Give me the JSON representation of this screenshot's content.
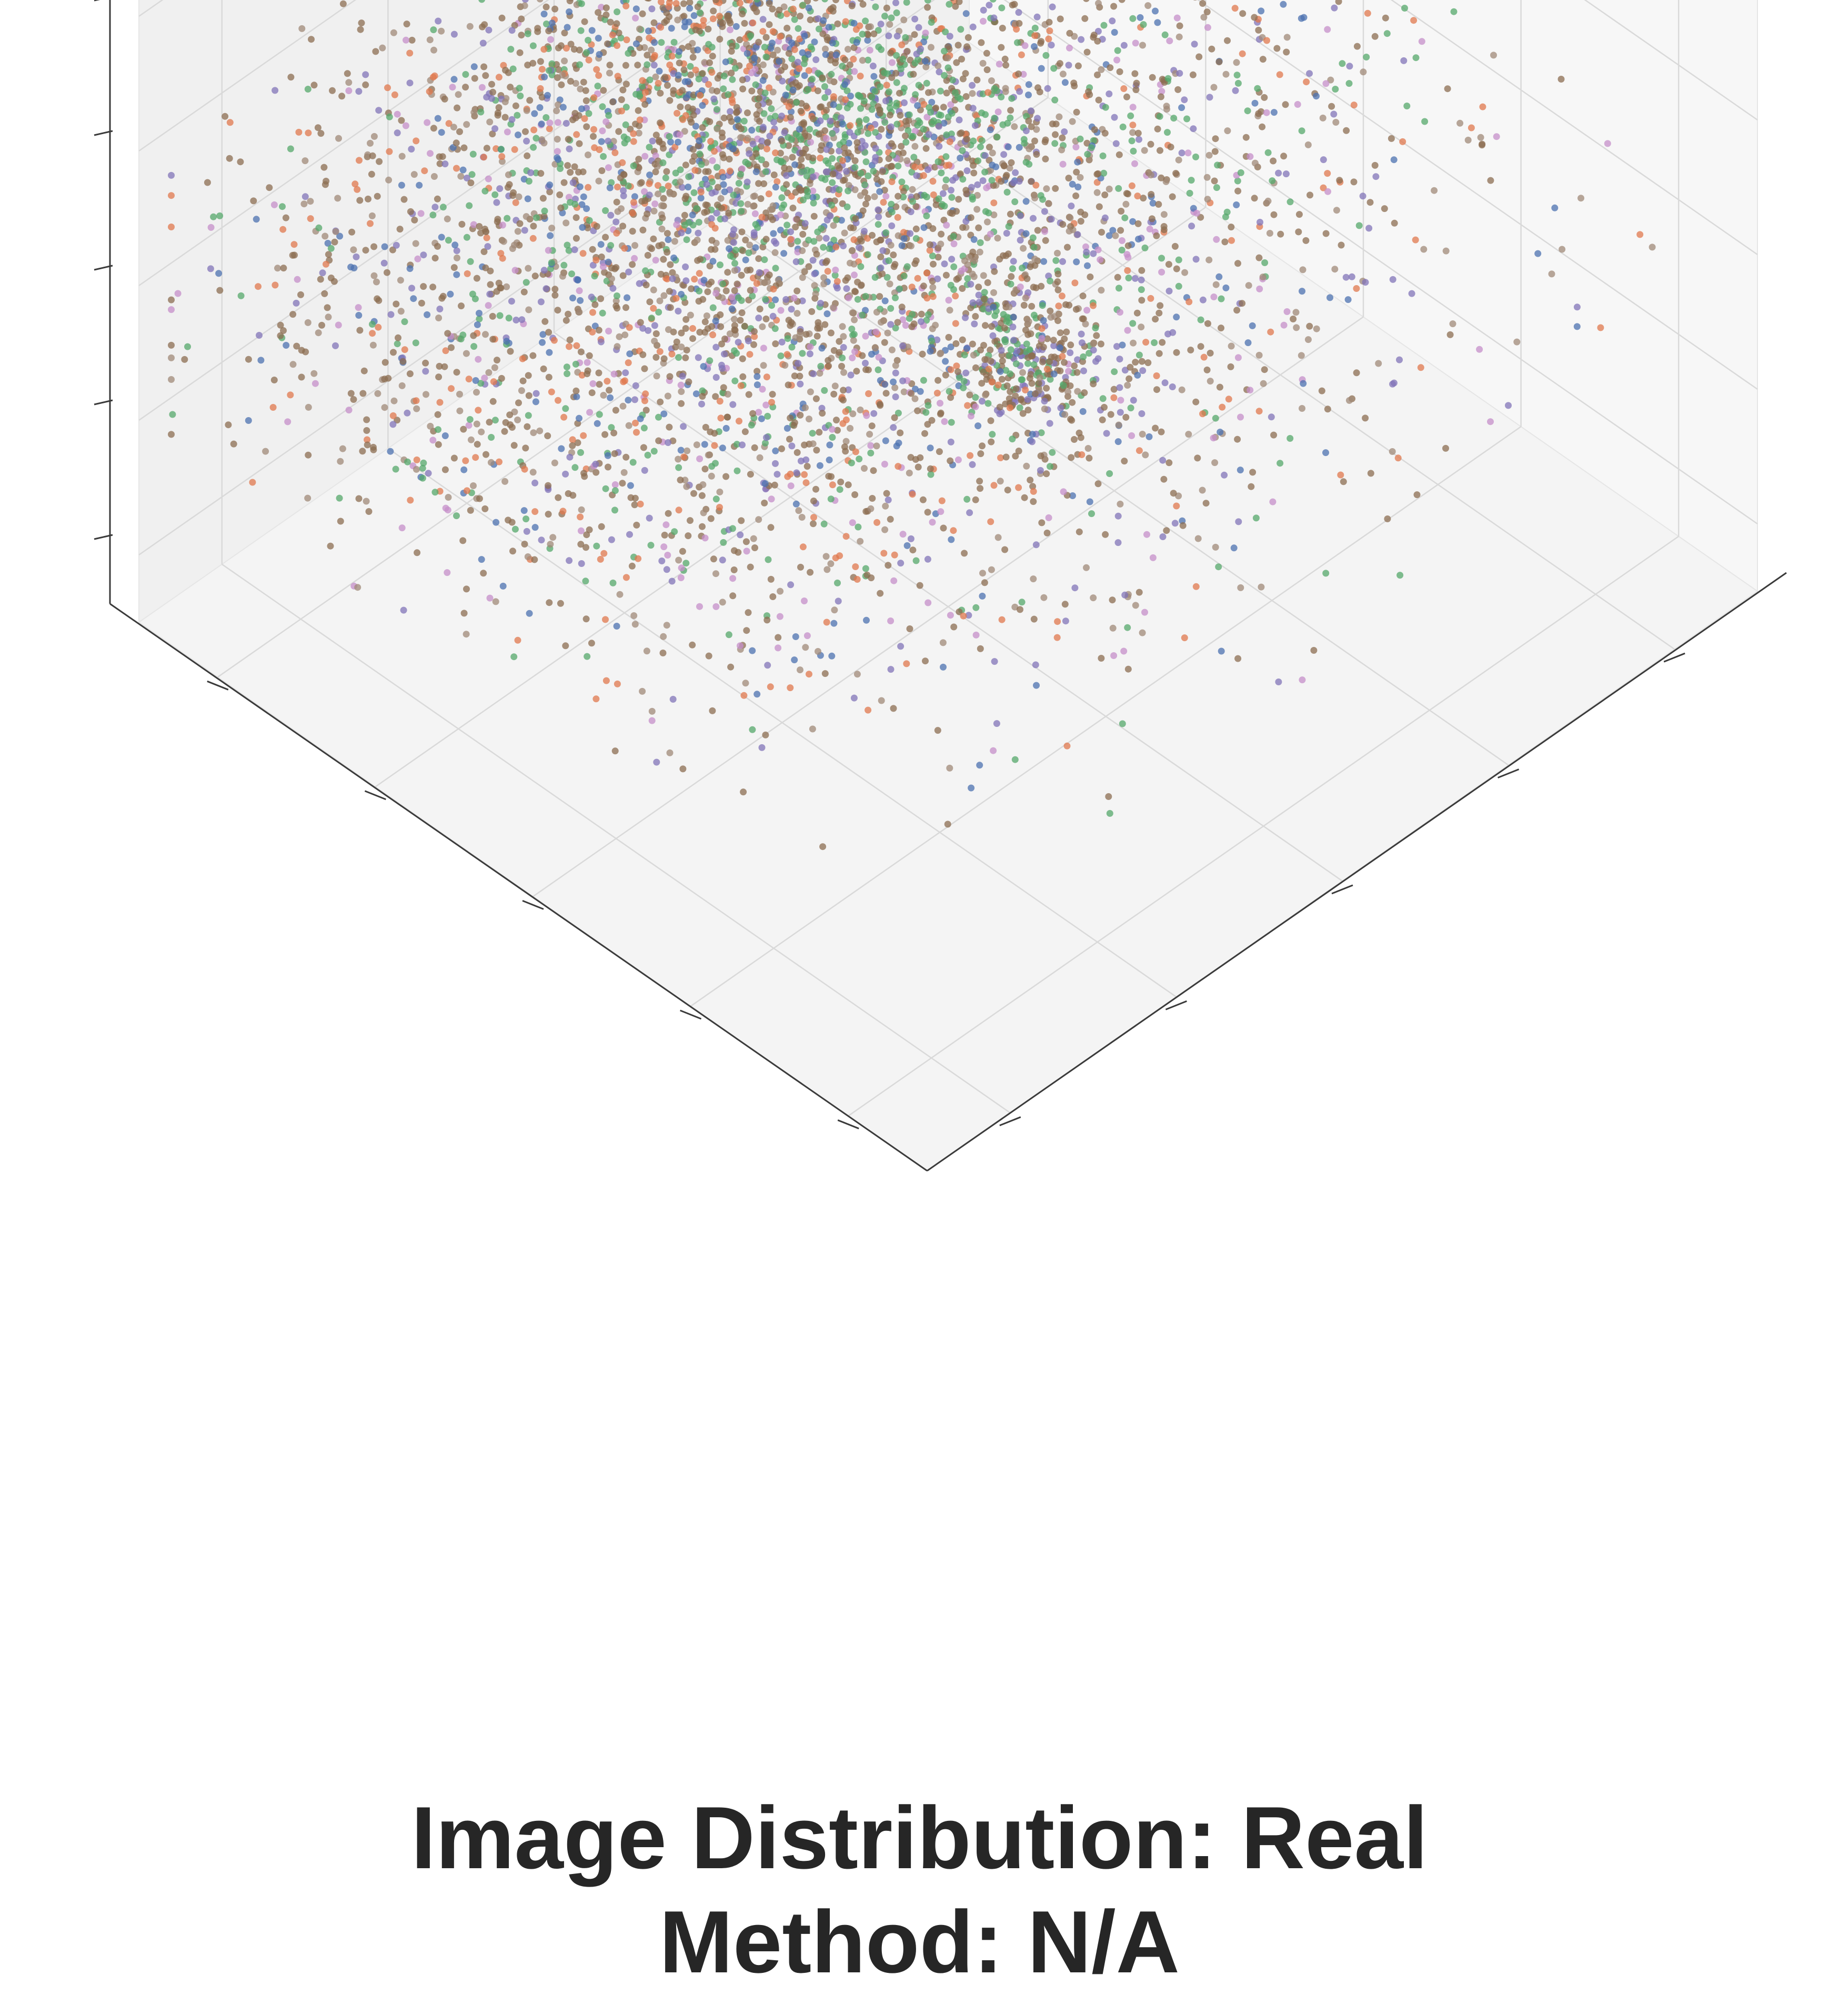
{
  "figure": {
    "title_line1": "Image Distribution: Real",
    "title_line2": "Method: N/A"
  },
  "chart_data": {
    "type": "scatter",
    "projection": "3d",
    "title": "Image Distribution: Real\nMethod: N/A",
    "xlabel": "",
    "ylabel": "",
    "zlabel": "",
    "tick_labels": "none",
    "grid": true,
    "legend": "none",
    "n_points_approx": 6000,
    "colors": {
      "brown": "#8c6d52",
      "tan": "#a08a78",
      "green": "#55a86b",
      "purple": "#8274b8",
      "orange": "#e0784e",
      "red": "#c94a3a",
      "blue": "#4c72b0",
      "pink": "#c58fc9"
    },
    "clusters": [
      {
        "name": "small upper-left cluster",
        "x": 0.18,
        "y": 0.3,
        "z": 0.78,
        "spread": 0.03,
        "count": 160,
        "color_mix": [
          "brown",
          "purple",
          "green"
        ]
      },
      {
        "name": "trailing arm",
        "x": 0.28,
        "y": 0.3,
        "z": 0.74,
        "spread": 0.05,
        "count": 60,
        "color_mix": [
          "green",
          "brown",
          "purple"
        ]
      },
      {
        "name": "main body",
        "x": 0.62,
        "y": 0.46,
        "z": 0.52,
        "spread": 0.22,
        "count": 4800,
        "color_mix": [
          "brown",
          "tan",
          "green",
          "purple",
          "orange",
          "blue",
          "pink"
        ]
      },
      {
        "name": "upper ridge",
        "x": 0.55,
        "y": 0.42,
        "z": 0.72,
        "spread": 0.08,
        "count": 500,
        "color_mix": [
          "green",
          "brown",
          "purple"
        ]
      },
      {
        "name": "right lobe",
        "x": 0.85,
        "y": 0.55,
        "z": 0.5,
        "spread": 0.08,
        "count": 480,
        "color_mix": [
          "brown",
          "orange",
          "blue",
          "green"
        ]
      }
    ]
  }
}
